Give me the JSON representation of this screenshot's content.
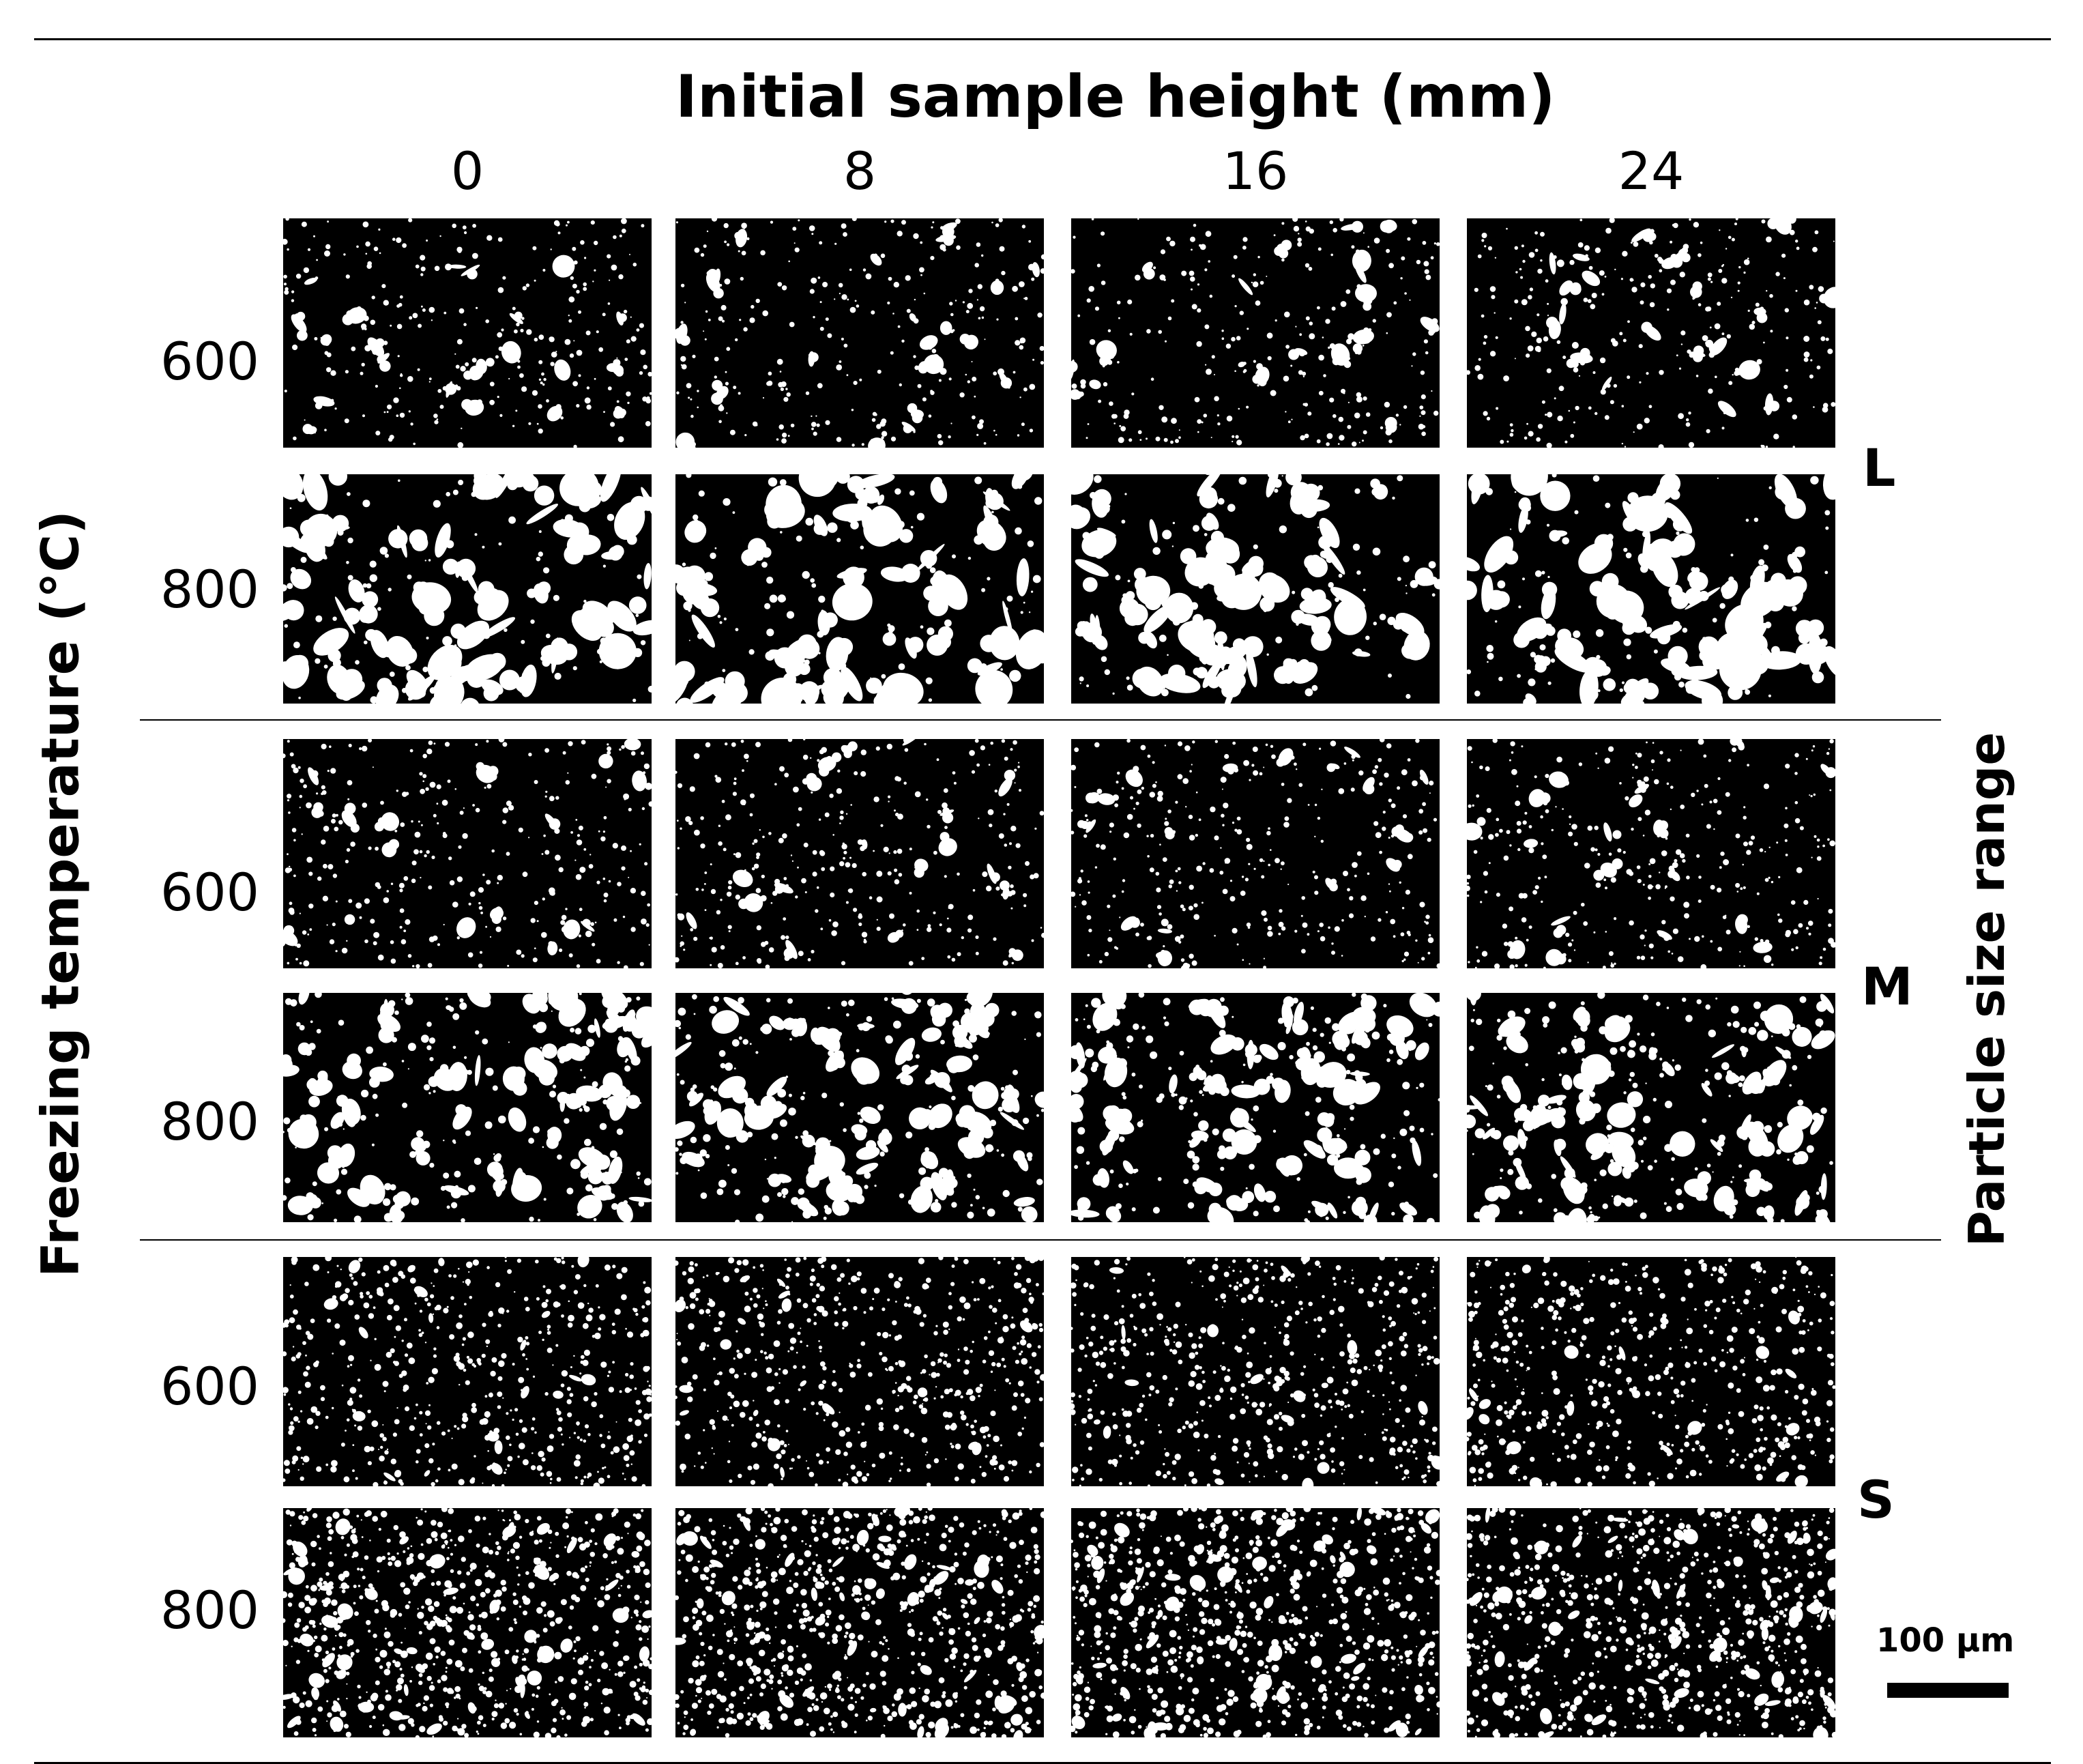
{
  "figure": {
    "column_axis_title": "Initial sample height (mm)",
    "column_labels": [
      "0",
      "8",
      "16",
      "24"
    ],
    "row_axis_title": "Freezing temperature (°C)",
    "row_labels": [
      "600",
      "800",
      "600",
      "800",
      "600",
      "800"
    ],
    "group_axis_title": "Particle size range",
    "group_labels": [
      "L",
      "M",
      "S"
    ],
    "scale_bar_label": "100 µm"
  },
  "colors": {
    "pore_background": "#000000",
    "particle": "#ffffff",
    "rule": "#000000"
  }
}
